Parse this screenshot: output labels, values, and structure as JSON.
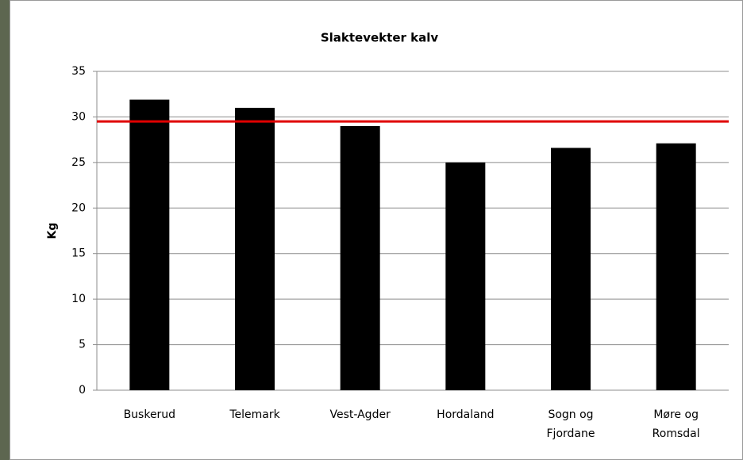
{
  "chart_data": {
    "type": "bar",
    "title": "Slaktevekter kalv",
    "y_label": "Kg",
    "categories": [
      "Buskerud",
      "Telemark",
      "Vest-Agder",
      "Hordaland",
      "Sogn og Fjordane",
      "Møre og Romsdal"
    ],
    "values": [
      31.9,
      31,
      29,
      25,
      26.6,
      27.1
    ],
    "color": "#000000",
    "reference_line": 29.5,
    "reference_color": "#e00000",
    "ylim": [
      0,
      35
    ],
    "yticks": [
      0,
      5,
      10,
      15,
      20,
      25,
      30,
      35
    ],
    "grid": true
  }
}
